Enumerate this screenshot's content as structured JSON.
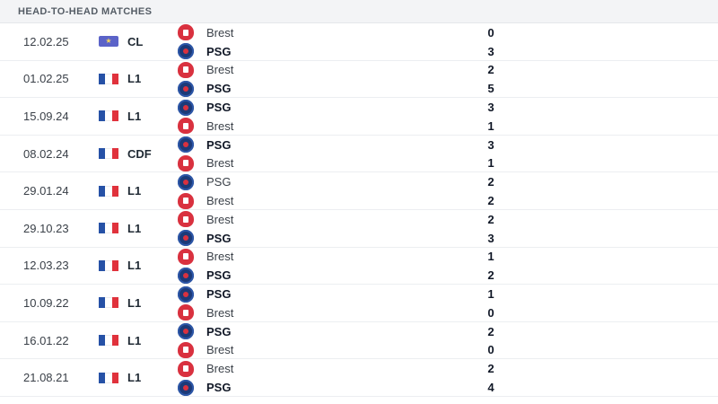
{
  "header": {
    "title": "HEAD-TO-HEAD MATCHES"
  },
  "matches": [
    {
      "date": "12.02.25",
      "comp": "CL",
      "comp_icon": "champions-league-logo-icon",
      "home": {
        "team": "Brest",
        "score": "0",
        "winner": false
      },
      "away": {
        "team": "PSG",
        "score": "3",
        "winner": true
      }
    },
    {
      "date": "01.02.25",
      "comp": "L1",
      "comp_icon": "france-flag-icon",
      "home": {
        "team": "Brest",
        "score": "2",
        "winner": false
      },
      "away": {
        "team": "PSG",
        "score": "5",
        "winner": true
      }
    },
    {
      "date": "15.09.24",
      "comp": "L1",
      "comp_icon": "france-flag-icon",
      "home": {
        "team": "PSG",
        "score": "3",
        "winner": true
      },
      "away": {
        "team": "Brest",
        "score": "1",
        "winner": false
      }
    },
    {
      "date": "08.02.24",
      "comp": "CDF",
      "comp_icon": "france-flag-icon",
      "home": {
        "team": "PSG",
        "score": "3",
        "winner": true
      },
      "away": {
        "team": "Brest",
        "score": "1",
        "winner": false
      }
    },
    {
      "date": "29.01.24",
      "comp": "L1",
      "comp_icon": "france-flag-icon",
      "home": {
        "team": "PSG",
        "score": "2",
        "winner": false
      },
      "away": {
        "team": "Brest",
        "score": "2",
        "winner": false
      }
    },
    {
      "date": "29.10.23",
      "comp": "L1",
      "comp_icon": "france-flag-icon",
      "home": {
        "team": "Brest",
        "score": "2",
        "winner": false
      },
      "away": {
        "team": "PSG",
        "score": "3",
        "winner": true
      }
    },
    {
      "date": "12.03.23",
      "comp": "L1",
      "comp_icon": "france-flag-icon",
      "home": {
        "team": "Brest",
        "score": "1",
        "winner": false
      },
      "away": {
        "team": "PSG",
        "score": "2",
        "winner": true
      }
    },
    {
      "date": "10.09.22",
      "comp": "L1",
      "comp_icon": "france-flag-icon",
      "home": {
        "team": "PSG",
        "score": "1",
        "winner": true
      },
      "away": {
        "team": "Brest",
        "score": "0",
        "winner": false
      }
    },
    {
      "date": "16.01.22",
      "comp": "L1",
      "comp_icon": "france-flag-icon",
      "home": {
        "team": "PSG",
        "score": "2",
        "winner": true
      },
      "away": {
        "team": "Brest",
        "score": "0",
        "winner": false
      }
    },
    {
      "date": "21.08.21",
      "comp": "L1",
      "comp_icon": "france-flag-icon",
      "home": {
        "team": "Brest",
        "score": "2",
        "winner": false
      },
      "away": {
        "team": "PSG",
        "score": "4",
        "winner": true
      }
    }
  ],
  "colors": {
    "header_bg": "#f3f4f6",
    "brest_red": "#d9313f",
    "psg_navy": "#1c3a78",
    "flag_blue": "#2651a6",
    "flag_red": "#e0323c"
  }
}
